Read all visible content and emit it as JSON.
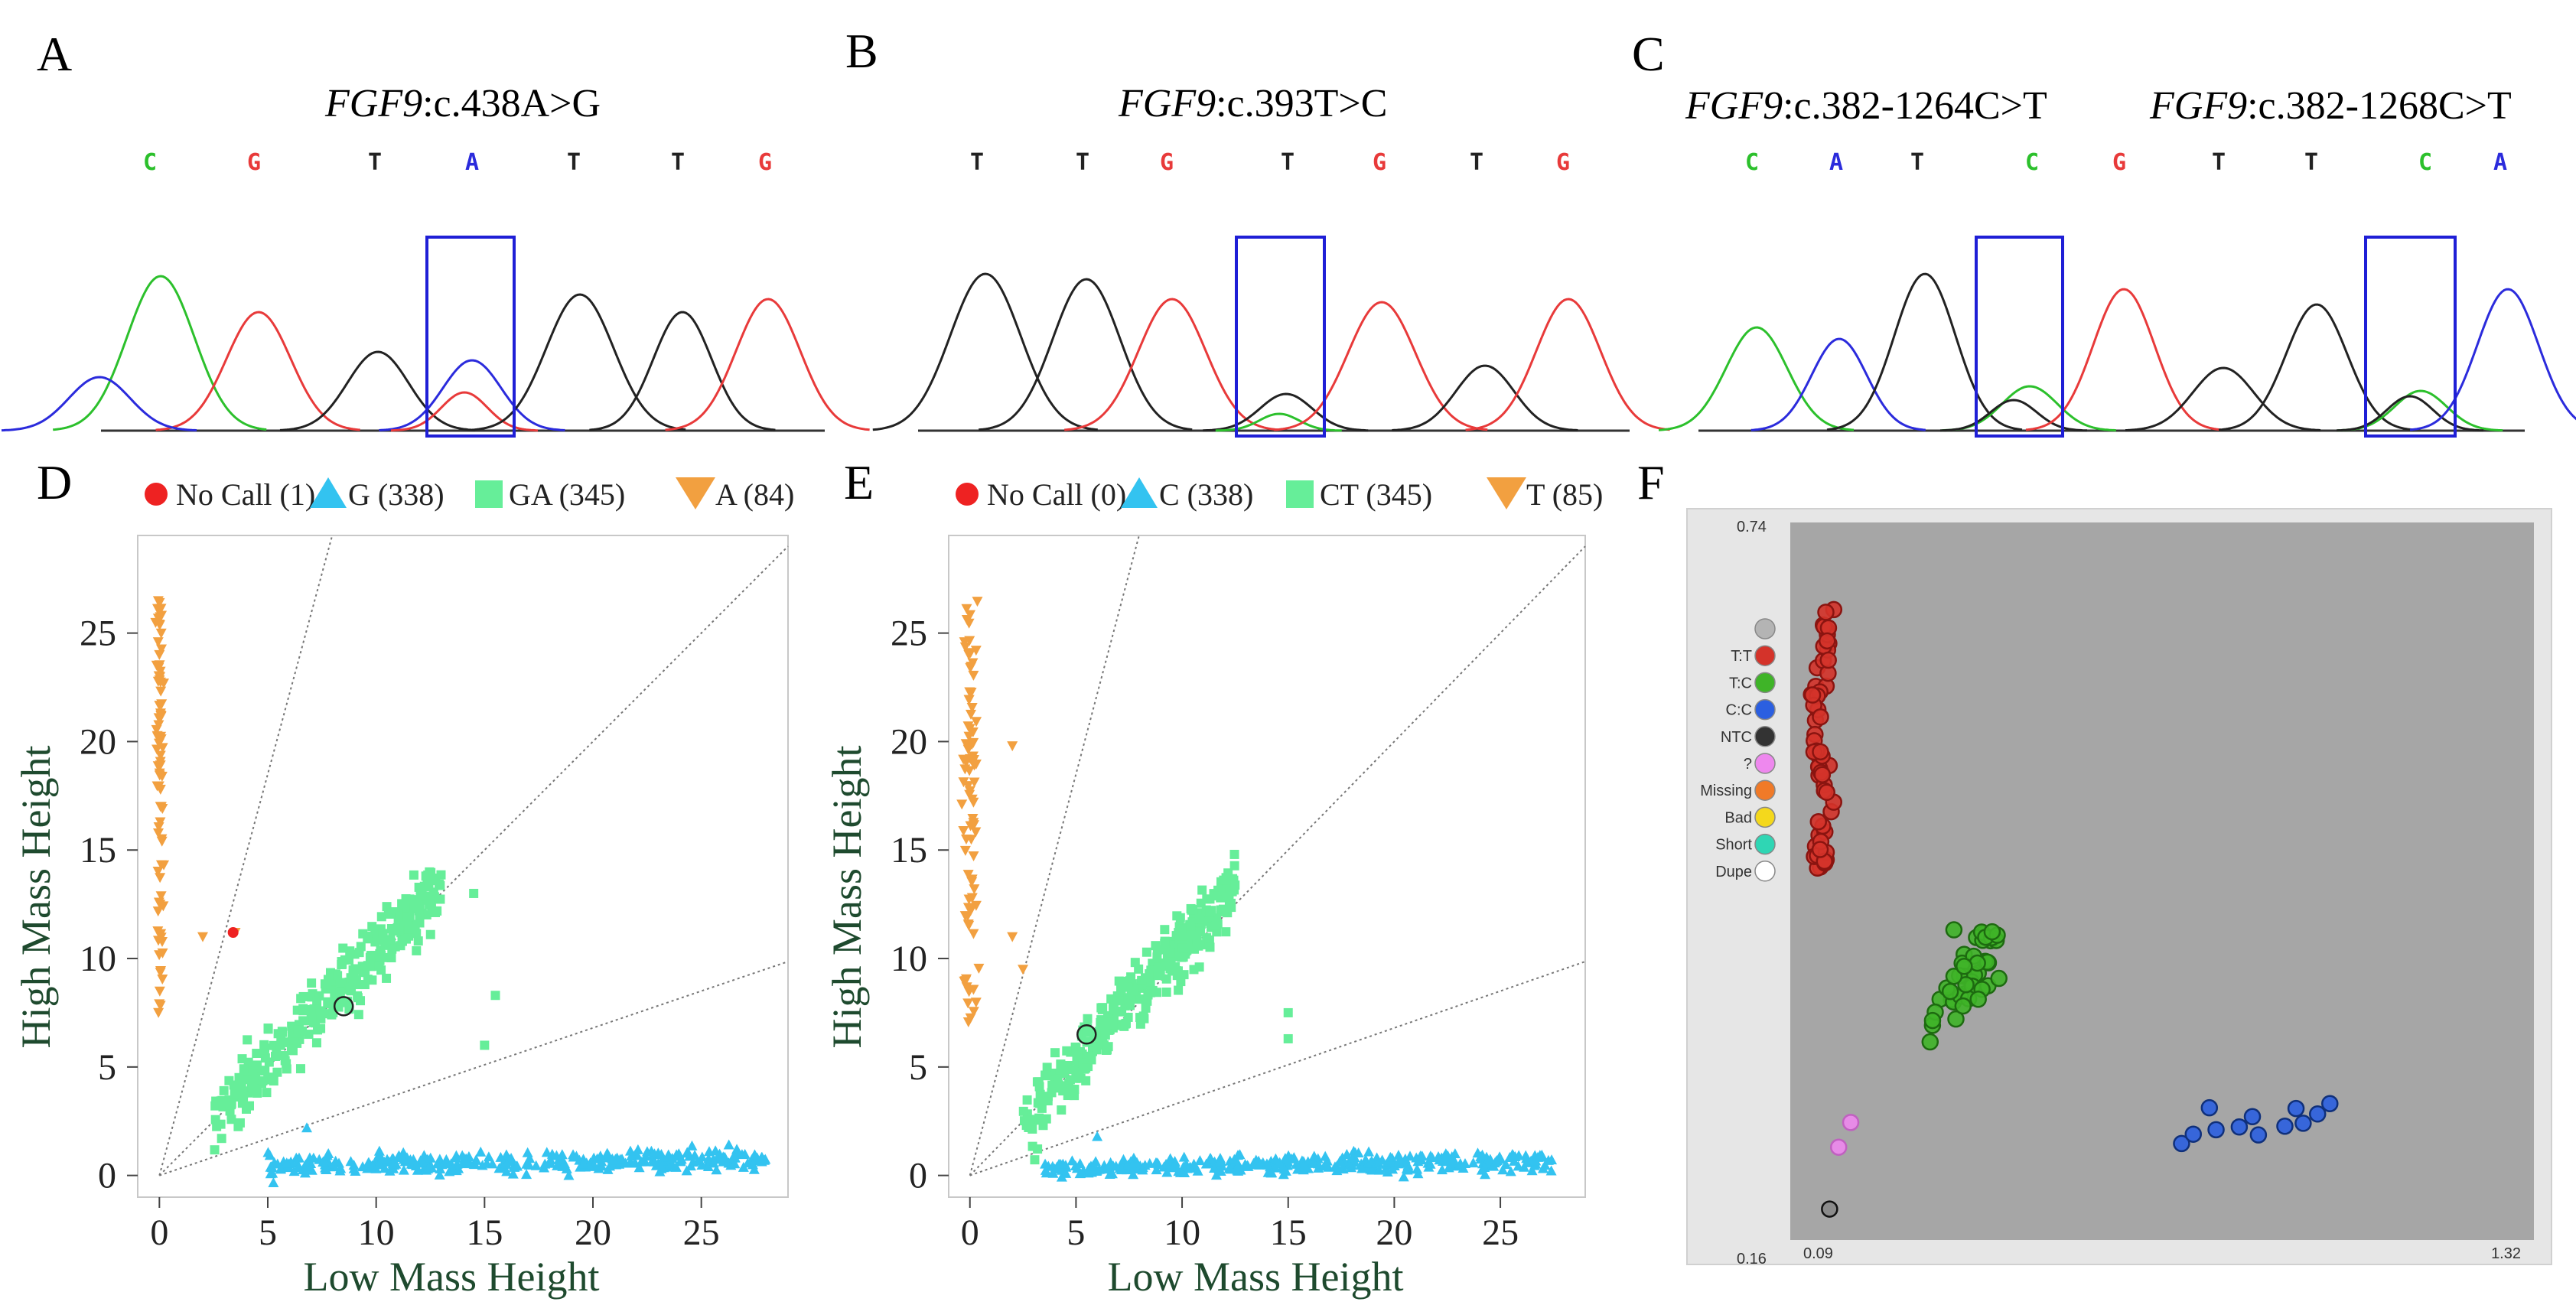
{
  "panels": {
    "A": {
      "letter": "A",
      "gene": "FGF9",
      "variant": ":c.438A>G",
      "bases": [
        "C",
        "G",
        "T",
        "A",
        "T",
        "T",
        "G"
      ]
    },
    "B": {
      "letter": "B",
      "gene": "FGF9",
      "variant": ":c.393T>C",
      "bases": [
        "T",
        "T",
        "G",
        "T",
        "G",
        "T",
        "G"
      ]
    },
    "C": {
      "letter": "C",
      "gene1": "FGF9",
      "variant1": ":c.382-1264C>T",
      "gene2": "FGF9",
      "variant2": ":c.382-1268C>T",
      "bases": [
        "C",
        "A",
        "T",
        "C",
        "G",
        "T",
        "T",
        "C",
        "A"
      ]
    },
    "D": {
      "letter": "D"
    },
    "E": {
      "letter": "E"
    },
    "F": {
      "letter": "F"
    }
  },
  "colors": {
    "A": "#2b2bdc",
    "C": "#2cc02c",
    "G": "#e83a3a",
    "T": "#222222",
    "box": "#1f1fd6",
    "nocall": "#ee2222",
    "hom_low": "#33c3f0",
    "het": "#66ee99",
    "hom_high": "#f2a040",
    "plot_bg": "#a6a6a6",
    "frame_bg": "#e6e6e6"
  },
  "chart_data": [
    {
      "panel": "D",
      "type": "scatter",
      "xlabel": "Low Mass Height",
      "ylabel": "High Mass Height",
      "xlim": [
        -1,
        29
      ],
      "ylim": [
        -1,
        29.5
      ],
      "xticks": [
        "0",
        "5",
        "10",
        "15",
        "20",
        "25"
      ],
      "yticks": [
        "0",
        "5",
        "10",
        "15",
        "20",
        "25"
      ],
      "legend": [
        {
          "label": "No Call (1)",
          "marker": "circle"
        },
        {
          "label": "G (338)",
          "marker": "triangle"
        },
        {
          "label": "GA (345)",
          "marker": "square"
        },
        {
          "label": "A (84)",
          "marker": "triangle-down"
        }
      ],
      "clusters": {
        "hom_high": {
          "count": 84,
          "x_center": 0,
          "x_spread": 0.15,
          "y_min": 7.5,
          "y_max": 26.5,
          "outliers": [
            [
              2,
              11
            ],
            [
              3.5,
              11.2
            ]
          ]
        },
        "het": {
          "count": 345,
          "line_slope": 1.05,
          "x_min": 2.5,
          "x_max": 13,
          "y_spread": 1.3,
          "outliers": [
            [
              14.5,
              13
            ],
            [
              15.5,
              8.3
            ],
            [
              15,
              6
            ]
          ]
        },
        "hom_low": {
          "count": 338,
          "x_min": 5,
          "x_max": 28,
          "y_center": 0.6,
          "y_spread": 0.45,
          "outliers": [
            [
              6.8,
              2.2
            ]
          ]
        }
      },
      "nocall_point": [
        3.4,
        11.2
      ],
      "open_circle": [
        8.5,
        7.8
      ],
      "guide_slopes": [
        3.7,
        1.0,
        0.34
      ]
    },
    {
      "panel": "E",
      "type": "scatter",
      "xlabel": "Low Mass Height",
      "ylabel": "High Mass Height",
      "xlim": [
        -1,
        29
      ],
      "ylim": [
        -1,
        29.5
      ],
      "xticks": [
        "0",
        "5",
        "10",
        "15",
        "20",
        "25"
      ],
      "yticks": [
        "0",
        "5",
        "10",
        "15",
        "20",
        "25"
      ],
      "legend": [
        {
          "label": "No Call (0)",
          "marker": "circle"
        },
        {
          "label": "C (338)",
          "marker": "triangle"
        },
        {
          "label": "CT (345)",
          "marker": "square"
        },
        {
          "label": "T (85)",
          "marker": "triangle-down"
        }
      ],
      "clusters": {
        "hom_high": {
          "count": 85,
          "x_center": 0,
          "x_spread": 0.35,
          "y_min": 6.2,
          "y_max": 26.5,
          "outliers": [
            [
              2,
              19.8
            ],
            [
              2,
              11
            ],
            [
              2.5,
              9.5
            ]
          ]
        },
        "het": {
          "count": 345,
          "line_slope": 1.08,
          "x_min": 2.5,
          "x_max": 12.5,
          "y_spread": 1.3,
          "outliers": [
            [
              15,
              7.5
            ],
            [
              15,
              6.3
            ]
          ]
        },
        "hom_low": {
          "count": 338,
          "x_min": 3.5,
          "x_max": 27.5,
          "y_center": 0.5,
          "y_spread": 0.45,
          "outliers": [
            [
              6,
              1.8
            ]
          ]
        }
      },
      "open_circle": [
        5.5,
        6.5
      ],
      "guide_slopes": [
        3.7,
        1.0,
        0.34
      ]
    },
    {
      "panel": "F",
      "type": "scatter",
      "xlim": [
        0.09,
        1.32
      ],
      "ylim": [
        0.16,
        0.74
      ],
      "corner_labels": {
        "y_top": "0.74",
        "y_bottom": "0.16",
        "x_left": "0.09",
        "x_right": "1.32"
      },
      "legend": [
        "",
        "T:T",
        "T:C",
        "C:C",
        "NTC",
        "?",
        "Missing",
        "Bad",
        "Short",
        "Dupe"
      ],
      "legend_colors": [
        "#b4b4b4",
        "#d4332a",
        "#3fb428",
        "#2b5fe0",
        "#333333",
        "#ee88ee",
        "#f07a28",
        "#f4d81c",
        "#2fd6b4",
        "#ffffff"
      ],
      "groups": [
        {
          "genotype": "T:T",
          "count": 60,
          "x_range": [
            0.12,
            0.16
          ],
          "y_range": [
            0.46,
            0.67
          ]
        },
        {
          "genotype": "T:C",
          "count": 45,
          "x_range": [
            0.3,
            0.45
          ],
          "y_range": [
            0.34,
            0.4
          ]
        },
        {
          "genotype": "C:C",
          "count": 12,
          "x_range": [
            0.74,
            0.97
          ],
          "y_range": [
            0.24,
            0.27
          ]
        },
        {
          "genotype": "?",
          "count": 2,
          "points": [
            [
              0.17,
              0.235
            ],
            [
              0.19,
              0.255
            ]
          ]
        },
        {
          "genotype": "NTC",
          "count": 1,
          "points": [
            [
              0.155,
              0.185
            ]
          ]
        }
      ]
    }
  ]
}
